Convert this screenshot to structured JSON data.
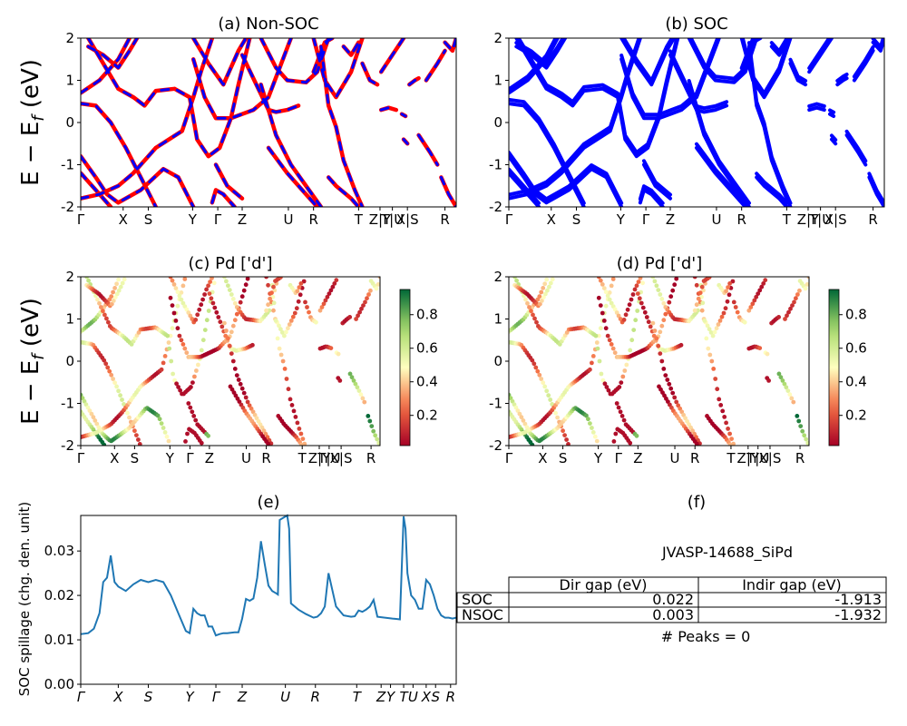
{
  "figure": {
    "ylabel_energy": "E − E_f (eV)",
    "ylabel_spillage": "SOC spillage (chg. den. unit)"
  },
  "kpath": {
    "labels": [
      "Γ",
      "X",
      "S",
      "Y",
      "Γ",
      "Z",
      "U",
      "R",
      "T",
      "Z|Y",
      "T|U",
      "X|S",
      "R"
    ],
    "positions": [
      0,
      0.113,
      0.18,
      0.298,
      0.365,
      0.43,
      0.553,
      0.62,
      0.74,
      0.797,
      0.83,
      0.87,
      0.97
    ],
    "spillage_labels": [
      "Γ",
      "X",
      "S",
      "Y",
      "Γ",
      "Z",
      "U",
      "R",
      "T",
      "Z",
      "Y",
      "T",
      "U",
      "X",
      "S",
      "R"
    ],
    "spillage_positions": [
      0,
      0.1,
      0.18,
      0.29,
      0.36,
      0.43,
      0.545,
      0.625,
      0.735,
      0.8,
      0.825,
      0.86,
      0.885,
      0.92,
      0.945,
      0.985
    ]
  },
  "chart_data": [
    {
      "id": "a",
      "type": "line",
      "title": "(a) Non-SOC",
      "ylim": [
        -2,
        2
      ],
      "yticks": [
        -2,
        -1,
        0,
        1,
        2
      ],
      "series": [
        {
          "color": "#ff0000"
        },
        {
          "color": "#0000ff"
        }
      ],
      "bands": [
        [
          [
            0,
            0.7
          ],
          [
            0.05,
            1.0
          ],
          [
            0.1,
            1.5
          ],
          [
            0.13,
            2.0
          ]
        ],
        [
          [
            0,
            0.45
          ],
          [
            0.04,
            0.4
          ],
          [
            0.08,
            0.0
          ],
          [
            0.12,
            -0.6
          ],
          [
            0.16,
            -1.3
          ],
          [
            0.2,
            -2.0
          ]
        ],
        [
          [
            0,
            -0.8
          ],
          [
            0.04,
            -1.3
          ],
          [
            0.07,
            -1.7
          ],
          [
            0.1,
            -1.9
          ],
          [
            0.16,
            -1.6
          ],
          [
            0.22,
            -1.1
          ],
          [
            0.26,
            -1.3
          ],
          [
            0.3,
            -2.0
          ]
        ],
        [
          [
            0,
            -1.2
          ],
          [
            0.04,
            -1.6
          ],
          [
            0.08,
            -2.0
          ]
        ],
        [
          [
            0,
            -1.8
          ],
          [
            0.05,
            -1.7
          ],
          [
            0.1,
            -1.5
          ],
          [
            0.14,
            -1.2
          ],
          [
            0.2,
            -0.6
          ],
          [
            0.27,
            -0.2
          ],
          [
            0.3,
            0.6
          ],
          [
            0.32,
            1.2
          ],
          [
            0.35,
            2.0
          ]
        ],
        [
          [
            0.02,
            2.0
          ],
          [
            0.06,
            1.4
          ],
          [
            0.1,
            0.8
          ],
          [
            0.14,
            0.6
          ],
          [
            0.17,
            0.4
          ],
          [
            0.2,
            0.75
          ],
          [
            0.25,
            0.8
          ],
          [
            0.29,
            0.6
          ],
          [
            0.31,
            -0.4
          ],
          [
            0.34,
            -0.8
          ],
          [
            0.37,
            -0.6
          ],
          [
            0.4,
            0.1
          ],
          [
            0.42,
            0.9
          ],
          [
            0.45,
            2.0
          ]
        ],
        [
          [
            0.02,
            1.8
          ],
          [
            0.06,
            1.6
          ],
          [
            0.1,
            1.3
          ],
          [
            0.13,
            1.7
          ],
          [
            0.15,
            2.0
          ]
        ],
        [
          [
            0.3,
            1.5
          ],
          [
            0.33,
            0.6
          ],
          [
            0.36,
            0.1
          ],
          [
            0.4,
            0.1
          ],
          [
            0.43,
            0.2
          ],
          [
            0.46,
            0.3
          ],
          [
            0.5,
            0.6
          ],
          [
            0.53,
            1.3
          ],
          [
            0.56,
            2.0
          ]
        ],
        [
          [
            0.3,
            2.0
          ],
          [
            0.34,
            1.4
          ],
          [
            0.38,
            0.9
          ],
          [
            0.42,
            1.7
          ],
          [
            0.44,
            2.0
          ]
        ],
        [
          [
            0.35,
            -1.9
          ],
          [
            0.36,
            -1.6
          ],
          [
            0.38,
            -1.7
          ],
          [
            0.41,
            -2.0
          ]
        ],
        [
          [
            0.36,
            -1.0
          ],
          [
            0.39,
            -1.5
          ],
          [
            0.43,
            -1.8
          ]
        ],
        [
          [
            0.43,
            1.6
          ],
          [
            0.5,
            0.3
          ],
          [
            0.52,
            0.25
          ],
          [
            0.55,
            0.3
          ],
          [
            0.58,
            0.4
          ]
        ],
        [
          [
            0.48,
            2.0
          ],
          [
            0.52,
            1.3
          ],
          [
            0.55,
            1.0
          ],
          [
            0.6,
            0.95
          ],
          [
            0.63,
            1.2
          ],
          [
            0.66,
            2.0
          ]
        ],
        [
          [
            0.48,
            0.9
          ],
          [
            0.52,
            -0.3
          ],
          [
            0.56,
            -1.0
          ],
          [
            0.6,
            -1.5
          ],
          [
            0.64,
            -2.0
          ]
        ],
        [
          [
            0.5,
            -0.6
          ],
          [
            0.55,
            -1.2
          ],
          [
            0.6,
            -1.7
          ],
          [
            0.63,
            -2.0
          ]
        ],
        [
          [
            0.62,
            2.0
          ],
          [
            0.65,
            1.0
          ],
          [
            0.68,
            0.6
          ],
          [
            0.72,
            1.2
          ],
          [
            0.75,
            2.0
          ]
        ],
        [
          [
            0.64,
            1.8
          ],
          [
            0.66,
            0.4
          ],
          [
            0.68,
            -0.1
          ],
          [
            0.7,
            -0.9
          ],
          [
            0.73,
            -1.6
          ],
          [
            0.75,
            -2.0
          ]
        ],
        [
          [
            0.66,
            -1.3
          ],
          [
            0.68,
            -1.5
          ],
          [
            0.72,
            -1.8
          ],
          [
            0.74,
            -2.0
          ]
        ],
        [
          [
            0.62,
            1.2
          ],
          [
            0.65,
            1.9
          ],
          [
            0.67,
            2.0
          ]
        ],
        [
          [
            0.7,
            1.8
          ],
          [
            0.72,
            1.6
          ],
          [
            0.74,
            1.9
          ]
        ],
        [
          [
            0.75,
            1.4
          ],
          [
            0.77,
            1.0
          ],
          [
            0.79,
            0.9
          ]
        ],
        [
          [
            0.8,
            1.2
          ],
          [
            0.83,
            1.6
          ],
          [
            0.86,
            2.0
          ]
        ],
        [
          [
            0.8,
            0.3
          ],
          [
            0.82,
            0.35
          ],
          [
            0.84,
            0.3
          ]
        ],
        [
          [
            0.855,
            0.2
          ],
          [
            0.865,
            0.15
          ]
        ],
        [
          [
            0.875,
            0.9
          ],
          [
            0.89,
            1.0
          ],
          [
            0.9,
            1.05
          ]
        ],
        [
          [
            0.86,
            -0.4
          ],
          [
            0.87,
            -0.5
          ]
        ],
        [
          [
            0.9,
            -0.3
          ],
          [
            0.93,
            -0.7
          ],
          [
            0.95,
            -1.0
          ]
        ],
        [
          [
            0.92,
            1.0
          ],
          [
            0.95,
            1.4
          ],
          [
            0.97,
            1.7
          ]
        ],
        [
          [
            0.97,
            1.9
          ],
          [
            0.99,
            1.7
          ],
          [
            1.0,
            2.0
          ]
        ],
        [
          [
            0.96,
            -1.3
          ],
          [
            0.98,
            -1.7
          ],
          [
            1.0,
            -2.0
          ]
        ]
      ]
    },
    {
      "id": "b",
      "type": "line",
      "title": "(b) SOC",
      "ylim": [
        -2,
        2
      ],
      "yticks": [
        -2,
        -1,
        0,
        1,
        2
      ],
      "series": [
        {
          "color": "#0000ff"
        }
      ]
    },
    {
      "id": "c",
      "type": "scatter",
      "title": "(c)  Pd ['d']",
      "ylim": [
        -2,
        2
      ],
      "yticks": [
        -2,
        -1,
        0,
        1,
        2
      ],
      "colorbar": {
        "ticks": [
          0.2,
          0.4,
          0.6,
          0.8
        ],
        "range": [
          0.02,
          0.95
        ],
        "colormap": "RdYlGn"
      },
      "weights": [
        0.55,
        0.35,
        0.65,
        0.8,
        0.3,
        0.4,
        0.3,
        0.15,
        0.3,
        0.05,
        0.55,
        0.3,
        0.35,
        0.2,
        0.1,
        0.3,
        0.3,
        0.15,
        0.4,
        0.3,
        0.3,
        0.3,
        0.3,
        0.25,
        0.3,
        0.3,
        0.55,
        0.35,
        0.3,
        0.75
      ]
    },
    {
      "id": "d",
      "type": "scatter",
      "title": "(d) Pd ['d']",
      "ylim": [
        -2,
        2
      ],
      "yticks": [
        -2,
        -1,
        0,
        1,
        2
      ],
      "colorbar": {
        "ticks": [
          0.2,
          0.4,
          0.6,
          0.8
        ],
        "range": [
          0.02,
          0.95
        ],
        "colormap": "RdYlGn"
      }
    },
    {
      "id": "e",
      "type": "line",
      "title": "(e)",
      "ylabel": "SOC spillage (chg. den. unit)",
      "ylim": [
        0,
        0.038
      ],
      "yticks": [
        0.0,
        0.01,
        0.02,
        0.03
      ],
      "ytick_labels": [
        "0.00",
        "0.01",
        "0.02",
        "0.03"
      ],
      "series": [
        {
          "color": "#1f77b4",
          "x": [
            0,
            0.02,
            0.035,
            0.05,
            0.06,
            0.07,
            0.08,
            0.09,
            0.1,
            0.12,
            0.14,
            0.16,
            0.18,
            0.2,
            0.22,
            0.24,
            0.26,
            0.28,
            0.29,
            0.3,
            0.31,
            0.32,
            0.33,
            0.34,
            0.35,
            0.36,
            0.37,
            0.38,
            0.39,
            0.4,
            0.41,
            0.42,
            0.43,
            0.44,
            0.45,
            0.46,
            0.47,
            0.48,
            0.49,
            0.5,
            0.51,
            0.52,
            0.525,
            0.53,
            0.54,
            0.55,
            0.555,
            0.56,
            0.58,
            0.6,
            0.62,
            0.63,
            0.64,
            0.65,
            0.66,
            0.68,
            0.7,
            0.72,
            0.73,
            0.74,
            0.75,
            0.76,
            0.77,
            0.78,
            0.79,
            0.8,
            0.81,
            0.82,
            0.83,
            0.84,
            0.85,
            0.86,
            0.865,
            0.87,
            0.88,
            0.89,
            0.9,
            0.91,
            0.92,
            0.93,
            0.94,
            0.95,
            0.96,
            0.97,
            0.98,
            0.99,
            1.0
          ],
          "y": [
            0.0113,
            0.0115,
            0.0125,
            0.016,
            0.023,
            0.024,
            0.029,
            0.023,
            0.022,
            0.021,
            0.0225,
            0.0235,
            0.023,
            0.0235,
            0.023,
            0.02,
            0.016,
            0.012,
            0.0115,
            0.017,
            0.016,
            0.0155,
            0.0155,
            0.013,
            0.013,
            0.011,
            0.0113,
            0.0115,
            0.0115,
            0.0116,
            0.0117,
            0.0117,
            0.0148,
            0.0192,
            0.0188,
            0.0193,
            0.024,
            0.0322,
            0.027,
            0.0222,
            0.021,
            0.0205,
            0.0202,
            0.037,
            0.0375,
            0.038,
            0.035,
            0.0182,
            0.0168,
            0.0158,
            0.015,
            0.0152,
            0.016,
            0.0175,
            0.025,
            0.0175,
            0.0155,
            0.0152,
            0.0153,
            0.0166,
            0.0163,
            0.0168,
            0.0175,
            0.019,
            0.0152,
            0.0151,
            0.015,
            0.0149,
            0.0148,
            0.0147,
            0.0146,
            0.0378,
            0.035,
            0.025,
            0.02,
            0.019,
            0.017,
            0.017,
            0.0235,
            0.0225,
            0.02,
            0.017,
            0.0155,
            0.015,
            0.015,
            0.0148,
            0.015
          ]
        }
      ]
    },
    {
      "id": "f",
      "type": "table",
      "title": "(f)",
      "caption": "JVASP-14688_SiPd",
      "columns": [
        "",
        "Dir gap (eV)",
        "Indir gap (eV)"
      ],
      "rows": [
        [
          "SOC",
          "0.022",
          "-1.913"
        ],
        [
          "NSOC",
          "0.003",
          "-1.932"
        ]
      ],
      "footer": "# Peaks = 0"
    }
  ]
}
